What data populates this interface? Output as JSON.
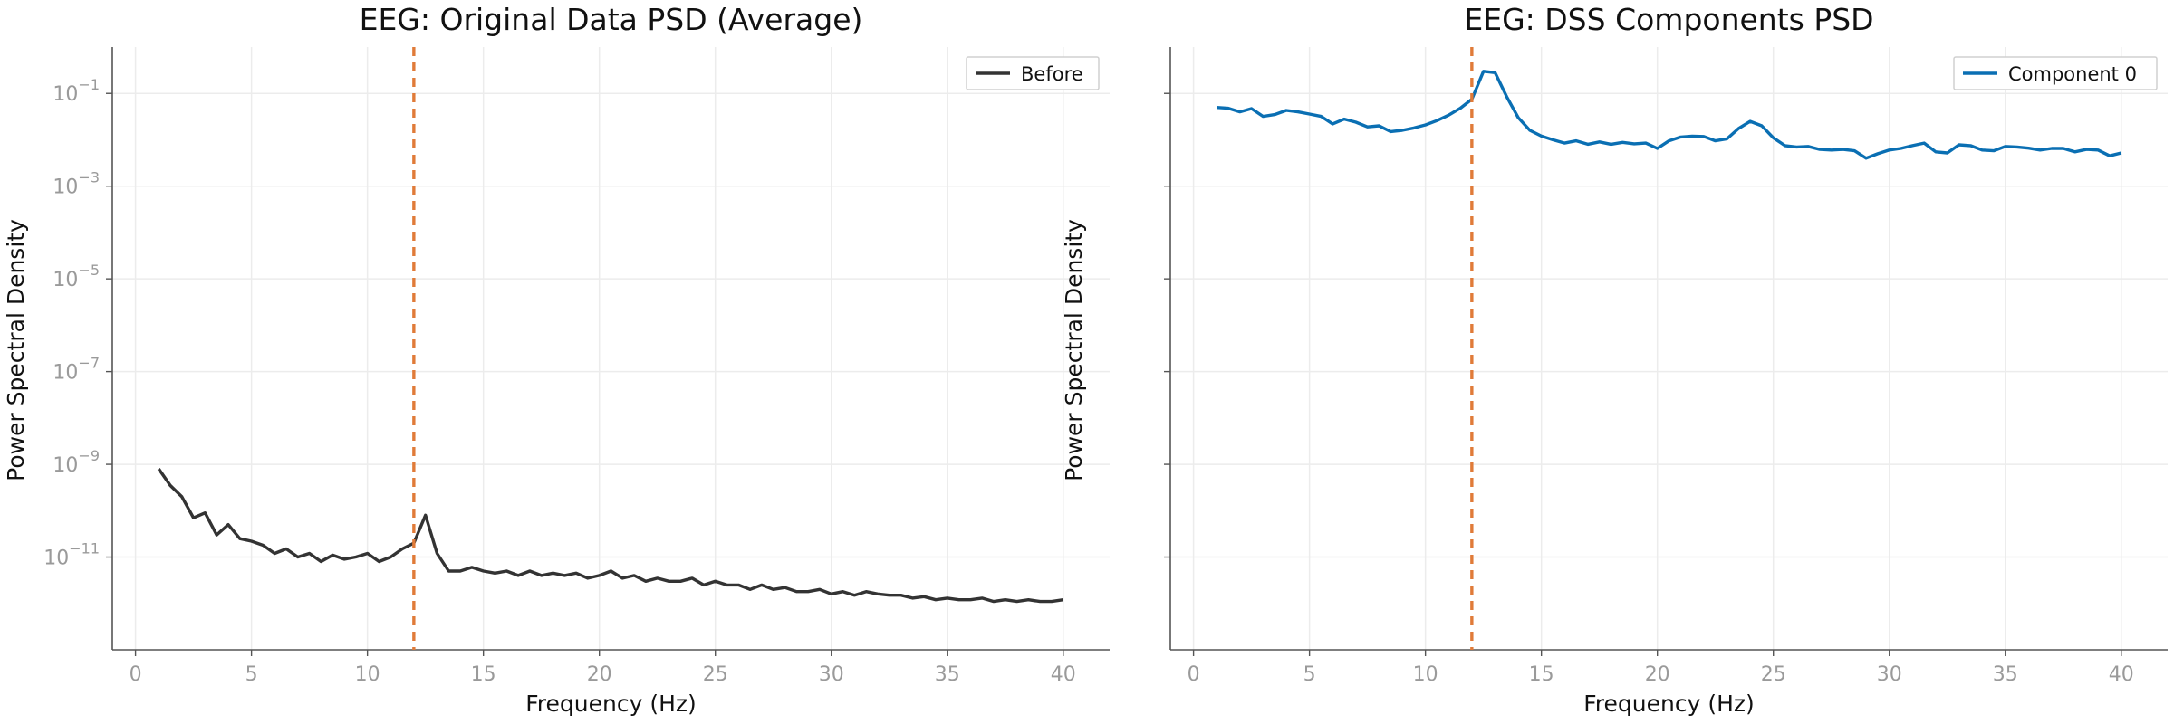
{
  "figure": {
    "panels": [
      {
        "title": "EEG: Original Data PSD (Average)",
        "xlabel": "Frequency (Hz)",
        "ylabel": "Power Spectral Density",
        "xticks": [
          "0",
          "5",
          "10",
          "15",
          "20",
          "25",
          "30",
          "35",
          "40"
        ],
        "yticks": [
          {
            "base": "10",
            "exp": "−1",
            "value": 0.1
          },
          {
            "base": "10",
            "exp": "−3",
            "value": 0.001
          },
          {
            "base": "10",
            "exp": "−5",
            "value": 1e-05
          },
          {
            "base": "10",
            "exp": "−7",
            "value": 1e-07
          },
          {
            "base": "10",
            "exp": "−9",
            "value": 1e-09
          },
          {
            "base": "10",
            "exp": "−11",
            "value": 1e-11
          }
        ],
        "show_ytick_labels": true,
        "legend": {
          "label": "Before",
          "color": "#333333",
          "position": "top-right"
        },
        "line_color": "#333333",
        "vline": {
          "x": 12,
          "color": "#e07b39"
        }
      },
      {
        "title": "EEG: DSS Components PSD",
        "xlabel": "Frequency (Hz)",
        "ylabel": "Power Spectral Density",
        "xticks": [
          "0",
          "5",
          "10",
          "15",
          "20",
          "25",
          "30",
          "35",
          "40"
        ],
        "yticks": [
          {
            "base": "10",
            "exp": "−1",
            "value": 0.1
          },
          {
            "base": "10",
            "exp": "−3",
            "value": 0.001
          },
          {
            "base": "10",
            "exp": "−5",
            "value": 1e-05
          },
          {
            "base": "10",
            "exp": "−7",
            "value": 1e-07
          },
          {
            "base": "10",
            "exp": "−9",
            "value": 1e-09
          },
          {
            "base": "10",
            "exp": "−11",
            "value": 1e-11
          }
        ],
        "show_ytick_labels": false,
        "legend": {
          "label": "Component 0",
          "color": "#0a6fb3",
          "position": "top-right"
        },
        "line_color": "#0a6fb3",
        "vline": {
          "x": 12,
          "color": "#e07b39"
        }
      }
    ]
  },
  "chart_data": [
    {
      "type": "line",
      "title": "EEG: Original Data PSD (Average)",
      "xlabel": "Frequency (Hz)",
      "ylabel": "Power Spectral Density",
      "xlim": [
        -1,
        42
      ],
      "ylim": [
        1e-13,
        1.0
      ],
      "yscale": "log",
      "grid": true,
      "legend_position": "top-right",
      "vlines": [
        12
      ],
      "series": [
        {
          "name": "Before",
          "color": "#333333",
          "x": [
            1,
            1.5,
            2,
            2.5,
            3,
            3.5,
            4,
            4.5,
            5,
            5.5,
            6,
            6.5,
            7,
            7.5,
            8,
            8.5,
            9,
            9.5,
            10,
            10.5,
            11,
            11.5,
            12,
            12.5,
            13,
            13.5,
            14,
            14.5,
            15,
            15.5,
            16,
            16.5,
            17,
            17.5,
            18,
            18.5,
            19,
            19.5,
            20,
            20.5,
            21,
            21.5,
            22,
            22.5,
            23,
            23.5,
            24,
            24.5,
            25,
            25.5,
            26,
            26.5,
            27,
            27.5,
            28,
            28.5,
            29,
            29.5,
            30,
            30.5,
            31,
            31.5,
            32,
            32.5,
            33,
            33.5,
            34,
            34.5,
            35,
            35.5,
            36,
            36.5,
            37,
            37.5,
            38,
            38.5,
            39,
            39.5,
            40
          ],
          "y": [
            8e-10,
            3.5e-10,
            2e-10,
            7e-11,
            9e-11,
            3e-11,
            5e-11,
            2.5e-11,
            2.2e-11,
            1.8e-11,
            1.2e-11,
            1.5e-11,
            1e-11,
            1.2e-11,
            8e-12,
            1.1e-11,
            9e-12,
            1e-11,
            1.2e-11,
            8e-12,
            1e-11,
            1.5e-11,
            2e-11,
            8e-11,
            1.2e-11,
            5e-12,
            5e-12,
            6e-12,
            5e-12,
            4.5e-12,
            5e-12,
            4e-12,
            5e-12,
            4e-12,
            4.5e-12,
            4e-12,
            4.5e-12,
            3.5e-12,
            4e-12,
            5e-12,
            3.5e-12,
            4e-12,
            3e-12,
            3.5e-12,
            3e-12,
            3e-12,
            3.5e-12,
            2.5e-12,
            3e-12,
            2.5e-12,
            2.5e-12,
            2e-12,
            2.5e-12,
            2e-12,
            2.2e-12,
            1.8e-12,
            1.8e-12,
            2e-12,
            1.6e-12,
            1.8e-12,
            1.5e-12,
            1.8e-12,
            1.6e-12,
            1.5e-12,
            1.5e-12,
            1.3e-12,
            1.4e-12,
            1.2e-12,
            1.3e-12,
            1.2e-12,
            1.2e-12,
            1.3e-12,
            1.1e-12,
            1.2e-12,
            1.1e-12,
            1.2e-12,
            1.1e-12,
            1.1e-12,
            1.2e-12
          ]
        }
      ]
    },
    {
      "type": "line",
      "title": "EEG: DSS Components PSD",
      "xlabel": "Frequency (Hz)",
      "ylabel": "Power Spectral Density",
      "xlim": [
        -1,
        42
      ],
      "ylim": [
        1e-13,
        1.0
      ],
      "yscale": "log",
      "grid": true,
      "legend_position": "top-right",
      "vlines": [
        12
      ],
      "series": [
        {
          "name": "Component 0",
          "color": "#0a6fb3",
          "x": [
            1,
            1.5,
            2,
            2.5,
            3,
            3.5,
            4,
            4.5,
            5,
            5.5,
            6,
            6.5,
            7,
            7.5,
            8,
            8.5,
            9,
            9.5,
            10,
            10.5,
            11,
            11.5,
            12,
            12.5,
            13,
            13.5,
            14,
            14.5,
            15,
            15.5,
            16,
            16.5,
            17,
            17.5,
            18,
            18.5,
            19,
            19.5,
            20,
            20.5,
            21,
            21.5,
            22,
            22.5,
            23,
            23.5,
            24,
            24.5,
            25,
            25.5,
            26,
            26.5,
            27,
            27.5,
            28,
            28.5,
            29,
            29.5,
            30,
            30.5,
            31,
            31.5,
            32,
            32.5,
            33,
            33.5,
            34,
            34.5,
            35,
            35.5,
            36,
            36.5,
            37,
            37.5,
            38,
            38.5,
            39,
            39.5,
            40
          ],
          "y": [
            0.05,
            0.048,
            0.04,
            0.047,
            0.032,
            0.035,
            0.043,
            0.04,
            0.036,
            0.032,
            0.022,
            0.028,
            0.024,
            0.019,
            0.02,
            0.015,
            0.016,
            0.018,
            0.021,
            0.026,
            0.034,
            0.048,
            0.075,
            0.3,
            0.28,
            0.085,
            0.03,
            0.016,
            0.012,
            0.01,
            0.0085,
            0.0095,
            0.008,
            0.009,
            0.008,
            0.0088,
            0.0082,
            0.0085,
            0.0065,
            0.0095,
            0.0115,
            0.012,
            0.0118,
            0.0095,
            0.0105,
            0.0175,
            0.025,
            0.02,
            0.011,
            0.0075,
            0.007,
            0.0072,
            0.0062,
            0.006,
            0.0062,
            0.0058,
            0.004,
            0.005,
            0.006,
            0.0065,
            0.0075,
            0.0085,
            0.0055,
            0.0052,
            0.0078,
            0.0075,
            0.006,
            0.0058,
            0.0072,
            0.007,
            0.0066,
            0.006,
            0.0065,
            0.0065,
            0.0055,
            0.0062,
            0.006,
            0.0045,
            0.0052
          ]
        }
      ]
    }
  ]
}
